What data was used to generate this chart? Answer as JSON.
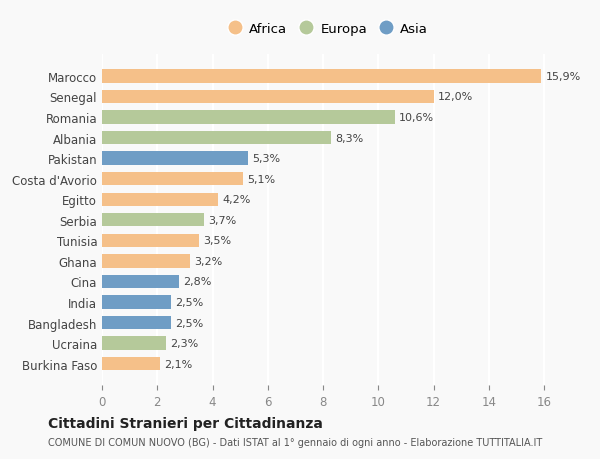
{
  "countries": [
    "Burkina Faso",
    "Ucraina",
    "Bangladesh",
    "India",
    "Cina",
    "Ghana",
    "Tunisia",
    "Serbia",
    "Egitto",
    "Costa d'Avorio",
    "Pakistan",
    "Albania",
    "Romania",
    "Senegal",
    "Marocco"
  ],
  "values": [
    2.1,
    2.3,
    2.5,
    2.5,
    2.8,
    3.2,
    3.5,
    3.7,
    4.2,
    5.1,
    5.3,
    8.3,
    10.6,
    12.0,
    15.9
  ],
  "continents": [
    "Africa",
    "Europa",
    "Asia",
    "Asia",
    "Asia",
    "Africa",
    "Africa",
    "Europa",
    "Africa",
    "Africa",
    "Asia",
    "Europa",
    "Europa",
    "Africa",
    "Africa"
  ],
  "continent_colors": {
    "Africa": "#F5C089",
    "Europa": "#B5C99A",
    "Asia": "#6F9DC5"
  },
  "labels": [
    "2,1%",
    "2,3%",
    "2,5%",
    "2,5%",
    "2,8%",
    "3,2%",
    "3,5%",
    "3,7%",
    "4,2%",
    "5,1%",
    "5,3%",
    "8,3%",
    "10,6%",
    "12,0%",
    "15,9%"
  ],
  "title": "Cittadini Stranieri per Cittadinanza",
  "subtitle": "COMUNE DI COMUN NUOVO (BG) - Dati ISTAT al 1° gennaio di ogni anno - Elaborazione TUTTITALIA.IT",
  "xlim": [
    0,
    16.5
  ],
  "xticks": [
    0,
    2,
    4,
    6,
    8,
    10,
    12,
    14,
    16
  ],
  "legend_order": [
    "Africa",
    "Europa",
    "Asia"
  ],
  "background_color": "#f9f9f9",
  "grid_color": "#ffffff",
  "bar_height": 0.65
}
